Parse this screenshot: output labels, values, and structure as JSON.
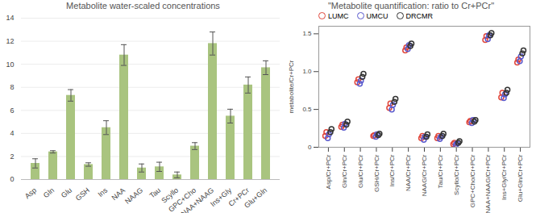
{
  "chart_data": [
    {
      "type": "bar",
      "title": "Metabolite water-scaled concentrations",
      "categories": [
        "Asp",
        "Gln",
        "Glu",
        "GSH",
        "Ins",
        "NAA",
        "NAAG",
        "Tau",
        "Scyllo",
        "GPC+Cho",
        "NAA+NAAG",
        "Ins+Gly",
        "Cr+PCr",
        "Glu+Gln"
      ],
      "values": [
        1.4,
        2.4,
        7.3,
        1.3,
        4.5,
        10.8,
        1.0,
        1.1,
        0.4,
        2.9,
        11.8,
        5.5,
        8.2,
        9.7
      ],
      "errors": [
        0.4,
        0.1,
        0.5,
        0.15,
        0.6,
        0.9,
        0.35,
        0.4,
        0.25,
        0.3,
        1.0,
        0.6,
        0.7,
        0.6
      ],
      "color": "#a9c47f",
      "ylim": [
        0,
        14
      ],
      "yticks": [
        0,
        2,
        4,
        6,
        8,
        10,
        12,
        14
      ],
      "grid": true
    },
    {
      "type": "scatter",
      "title": "\"Metabolite quantification: ratio to Cr+PCr\"",
      "ylabel": "metabolite/Cr+PCr",
      "categories": [
        "Asp/Cr+PCr",
        "Gln/Cr+PCr",
        "Glu/Cr+PCr",
        "GSH/Cr+PCr",
        "Ins/Cr+PCr",
        "NAA/Cr+PCr",
        "NAAG/Cr+PCr",
        "Tau/Cr+PCr",
        "Scyllo/Cr+PCr",
        "GPC+Cho/Cr+PCr",
        "NAA+NAAG/Cr+PCr",
        "Ins+Gly/Cr+PCr",
        "Glu+Gln/Cr+PCr"
      ],
      "series": [
        {
          "name": "LUMC",
          "color": "#e0453a",
          "values": [
            [
              0.15,
              0.2
            ],
            [
              0.27,
              0.3
            ],
            [
              0.86,
              0.9
            ],
            [
              0.15,
              0.16
            ],
            [
              0.52,
              0.58
            ],
            [
              1.28,
              1.32
            ],
            [
              0.12,
              0.15
            ],
            [
              0.12,
              0.15
            ],
            [
              0.04,
              0.06
            ],
            [
              0.33,
              0.35
            ],
            [
              1.42,
              1.47
            ],
            [
              0.66,
              0.72
            ],
            [
              1.12,
              1.16
            ]
          ]
        },
        {
          "name": "UMCU",
          "color": "#5a5acd",
          "values": [
            [
              0.12,
              0.17
            ],
            [
              0.26,
              0.31
            ],
            [
              0.84,
              0.88
            ],
            [
              0.14,
              0.17
            ],
            [
              0.5,
              0.56
            ],
            [
              1.3,
              1.35
            ],
            [
              0.1,
              0.14
            ],
            [
              0.11,
              0.14
            ],
            [
              0.03,
              0.05
            ],
            [
              0.32,
              0.36
            ],
            [
              1.43,
              1.48
            ],
            [
              0.65,
              0.7
            ],
            [
              1.14,
              1.2
            ]
          ]
        },
        {
          "name": "DRCMR",
          "color": "#333333",
          "values": [
            [
              0.2,
              0.24
            ],
            [
              0.3,
              0.34
            ],
            [
              0.93,
              0.97
            ],
            [
              0.16,
              0.18
            ],
            [
              0.6,
              0.64
            ],
            [
              1.34,
              1.37
            ],
            [
              0.14,
              0.17
            ],
            [
              0.15,
              0.18
            ],
            [
              0.06,
              0.08
            ],
            [
              0.34,
              0.36
            ],
            [
              1.48,
              1.51
            ],
            [
              0.72,
              0.76
            ],
            [
              1.24,
              1.28
            ]
          ]
        }
      ],
      "marker": "circle",
      "legend": "top-left",
      "ylim": [
        0,
        1.6
      ],
      "yticks": [
        0,
        {
          "value": 0.5,
          "label": "0.5"
        },
        {
          "value": 1,
          "label": "1.0"
        },
        {
          "value": 1.5,
          "label": "1.5"
        }
      ]
    }
  ]
}
